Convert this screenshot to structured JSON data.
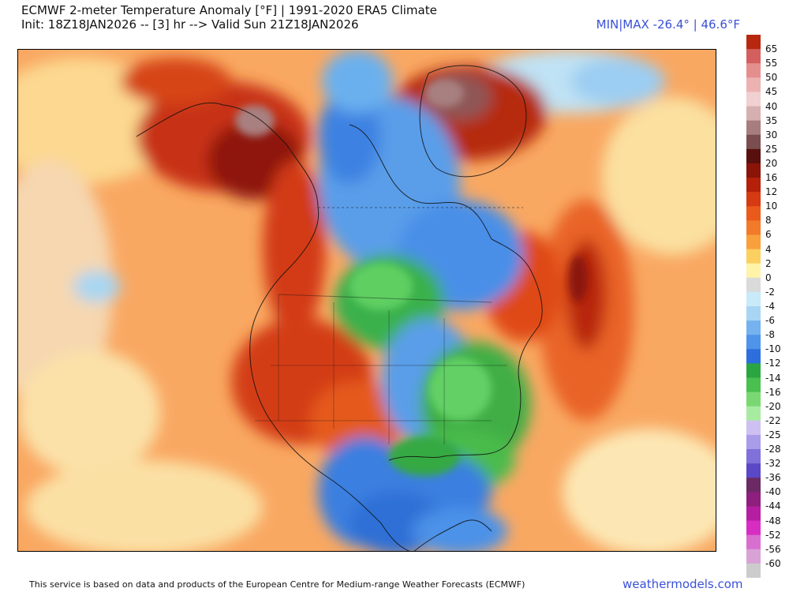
{
  "header": {
    "title": "ECMWF 2-meter Temperature Anomaly [°F] | 1991-2020 ERA5 Climate",
    "subtitle": "Init: 18Z18JAN2026 -- [3] hr --> Valid Sun 21Z18JAN2026",
    "minmax": "MIN|MAX -26.4° | 46.6°F"
  },
  "legend": {
    "labels": [
      "65",
      "55",
      "50",
      "45",
      "40",
      "35",
      "30",
      "25",
      "20",
      "16",
      "12",
      "10",
      "8",
      "6",
      "4",
      "2",
      "0",
      "-2",
      "-4",
      "-6",
      "-8",
      "-10",
      "-12",
      "-14",
      "-16",
      "-20",
      "-22",
      "-25",
      "-28",
      "-32",
      "-36",
      "-40",
      "-44",
      "-48",
      "-52",
      "-56",
      "-60"
    ],
    "colors": [
      "#b8280f",
      "#d35f5f",
      "#e58e8e",
      "#ecb2b2",
      "#f0d0d0",
      "#d6b0b0",
      "#a77d7d",
      "#7a4e4e",
      "#5a0f0f",
      "#8a1408",
      "#b5200b",
      "#d63a12",
      "#ea5a1a",
      "#f27a2a",
      "#f9a03c",
      "#fbd060",
      "#fff3a8",
      "#dadada",
      "#c9eaf8",
      "#a9d5f4",
      "#74b3ef",
      "#4d94ea",
      "#2c6fdc",
      "#2aa640",
      "#49c050",
      "#7ad872",
      "#a7eba0",
      "#cfc0f2",
      "#a99ce8",
      "#7f70da",
      "#5a48c6",
      "#6b2a63",
      "#8e1f7e",
      "#b61ea1",
      "#d82dc2",
      "#d86fd0",
      "#d9a2d6",
      "#cccccc"
    ]
  },
  "footer": {
    "note": "This service is based on data and products of the European Centre for Medium-range Weather Forecasts (ECMWF)",
    "brand": "weathermodels.com"
  }
}
